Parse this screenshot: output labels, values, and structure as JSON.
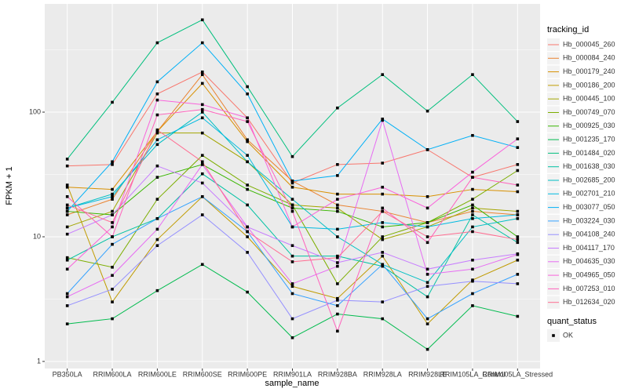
{
  "chart_data": {
    "type": "line",
    "x_label": "sample_name",
    "y_label": "FPKM + 1",
    "log_y": true,
    "grid": true,
    "point_color": "#000000",
    "categories": [
      "PB350LA",
      "RRIM600LA",
      "RRIM600LE",
      "RRIM600SE",
      "RRIM600PE",
      "RRIM901LA",
      "RRIM928BA",
      "RRIM928LA",
      "RRIM928LE",
      "RRIM105LA_Control",
      "RRIM105LA_Stressed"
    ],
    "ylim": [
      0.878,
      738
    ],
    "yticks": [
      1,
      10,
      100
    ],
    "legend_title": "tracking_id",
    "status_legend": {
      "title": "quant_status",
      "labels": [
        "OK"
      ]
    },
    "series": [
      {
        "name": "Hb_000045_260",
        "color": "#F8766D",
        "values": [
          37,
          38,
          140,
          210,
          90,
          27,
          38,
          39,
          50,
          30,
          38
        ]
      },
      {
        "name": "Hb_000084_240",
        "color": "#EA8331",
        "values": [
          15,
          20,
          70,
          200,
          60,
          28,
          18,
          16,
          13,
          16,
          15
        ]
      },
      {
        "name": "Hb_000179_240",
        "color": "#D89000",
        "values": [
          25,
          24,
          70,
          170,
          58,
          25,
          22,
          22,
          21,
          24,
          23
        ]
      },
      {
        "name": "Hb_000186_200",
        "color": "#C09B00",
        "values": [
          26,
          3.0,
          9.5,
          21,
          10,
          4.0,
          3.2,
          7,
          2.0,
          4.5,
          6.5
        ]
      },
      {
        "name": "Hb_000445_100",
        "color": "#A3A500",
        "values": [
          12,
          16,
          68,
          68,
          40,
          18,
          17,
          9.5,
          12,
          17,
          16
        ]
      },
      {
        "name": "Hb_000749_070",
        "color": "#7CAE00",
        "values": [
          6.8,
          5.7,
          20,
          45,
          26,
          18,
          4.2,
          10,
          13,
          20,
          34
        ]
      },
      {
        "name": "Hb_000925_030",
        "color": "#39B600",
        "values": [
          16,
          15,
          30,
          38,
          24,
          17,
          16,
          12,
          13,
          18,
          10
        ]
      },
      {
        "name": "Hb_001235_170",
        "color": "#00BB4E",
        "values": [
          2.0,
          2.2,
          3.7,
          6.0,
          3.6,
          1.55,
          2.4,
          2.2,
          1.25,
          2.8,
          2.3
        ]
      },
      {
        "name": "Hb_001484_020",
        "color": "#00BF7D",
        "values": [
          42,
          120,
          360,
          550,
          160,
          44,
          108,
          200,
          102,
          200,
          84
        ]
      },
      {
        "name": "Hb_001638_030",
        "color": "#00C1A3",
        "values": [
          6.5,
          10,
          14,
          32,
          18,
          7,
          7,
          5.8,
          3.3,
          15,
          9
        ]
      },
      {
        "name": "Hb_002685_200",
        "color": "#00BFC4",
        "values": [
          17,
          22,
          55,
          100,
          40,
          20,
          10,
          6,
          4.3,
          12,
          14
        ]
      },
      {
        "name": "Hb_002701_210",
        "color": "#00BAE0",
        "values": [
          17,
          21,
          60,
          90,
          45,
          12,
          11.5,
          13,
          12,
          14,
          15
        ]
      },
      {
        "name": "Hb_003077_050",
        "color": "#00B0F6",
        "values": [
          16,
          40,
          175,
          360,
          140,
          28,
          31,
          88,
          50,
          65,
          52
        ]
      },
      {
        "name": "Hb_003224_030",
        "color": "#35A2FF",
        "values": [
          3.5,
          8.7,
          14,
          21,
          11,
          3.5,
          2.8,
          6,
          2.2,
          3.5,
          5
        ]
      },
      {
        "name": "Hb_004108_240",
        "color": "#9590FF",
        "values": [
          2.8,
          3.8,
          8.5,
          15,
          7.5,
          2.2,
          3.1,
          3.0,
          4.0,
          4.4,
          4.2
        ]
      },
      {
        "name": "Hb_004117_170",
        "color": "#C77CFF",
        "values": [
          10.5,
          15,
          37,
          27,
          12,
          8.5,
          6.2,
          7.5,
          5.5,
          6.5,
          7.3
        ]
      },
      {
        "name": "Hb_004635_030",
        "color": "#E76BF3",
        "values": [
          3.3,
          4.9,
          11.5,
          38,
          12,
          4.2,
          5.8,
          86,
          5.0,
          5.5,
          7.2
        ]
      },
      {
        "name": "Hb_004965_050",
        "color": "#FA62DB",
        "values": [
          5.5,
          12,
          125,
          115,
          90,
          12,
          20,
          25,
          17,
          33,
          61
        ]
      },
      {
        "name": "Hb_007253_010",
        "color": "#FF62BC",
        "values": [
          21,
          10,
          95,
          105,
          84,
          16,
          1.75,
          17,
          9,
          30,
          26
        ]
      },
      {
        "name": "Hb_012634_020",
        "color": "#FF6C91",
        "values": [
          18,
          13,
          72,
          40,
          11,
          6.3,
          6.8,
          16,
          10,
          11,
          9.5
        ]
      }
    ]
  }
}
